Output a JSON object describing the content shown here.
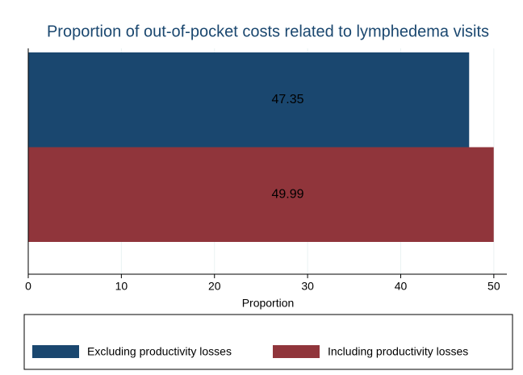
{
  "chart_data": {
    "type": "bar",
    "orientation": "horizontal",
    "title": "Proportion of out-of-pocket costs related to lymphedema visits",
    "x_label": "Proportion",
    "series": [
      {
        "name": "Excluding productivity losses",
        "color": "#1a476f",
        "values": [
          47.35
        ]
      },
      {
        "name": "Including productivity losses",
        "color": "#90353b",
        "values": [
          49.99
        ]
      }
    ],
    "xlim": [
      0,
      51.4
    ],
    "xticks": [
      0,
      10,
      20,
      30,
      40,
      50
    ],
    "grid": true,
    "legend": "bottom"
  }
}
